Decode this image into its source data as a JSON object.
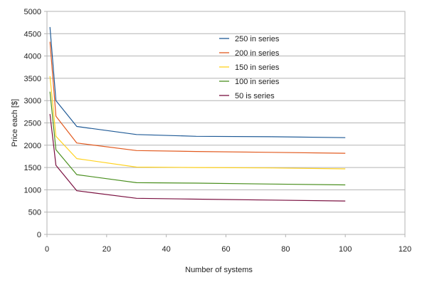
{
  "chart_data": {
    "type": "line",
    "title": "",
    "xlabel": "Number of systems",
    "ylabel": "Price each [$]",
    "xlim": [
      0,
      120
    ],
    "ylim": [
      0,
      5000
    ],
    "x_ticks": [
      0,
      20,
      40,
      60,
      80,
      100,
      120
    ],
    "y_ticks": [
      0,
      500,
      1000,
      1500,
      2000,
      2500,
      3000,
      3500,
      4000,
      4500,
      5000
    ],
    "grid": "horizontal",
    "legend_position": "top-right",
    "series": [
      {
        "name": "250 in series",
        "color": "#1f5a96",
        "x": [
          1,
          3,
          10,
          30,
          50,
          75,
          100
        ],
        "y": [
          4650,
          3000,
          2420,
          2240,
          2200,
          2190,
          2170
        ]
      },
      {
        "name": "200 in series",
        "color": "#e25a1f",
        "x": [
          1,
          3,
          10,
          30,
          50,
          75,
          100
        ],
        "y": [
          4320,
          2650,
          2050,
          1880,
          1860,
          1840,
          1820
        ]
      },
      {
        "name": "150 in series",
        "color": "#ffd21f",
        "x": [
          1,
          3,
          10,
          30,
          50,
          75,
          100
        ],
        "y": [
          3550,
          2200,
          1700,
          1510,
          1500,
          1490,
          1470
        ]
      },
      {
        "name": "100 in series",
        "color": "#4a8f1f",
        "x": [
          1,
          3,
          10,
          30,
          50,
          75,
          100
        ],
        "y": [
          3200,
          1900,
          1340,
          1160,
          1150,
          1130,
          1110
        ]
      },
      {
        "name": "50 is series",
        "color": "#7a1040",
        "x": [
          1,
          3,
          10,
          30,
          50,
          75,
          100
        ],
        "y": [
          2700,
          1550,
          980,
          810,
          790,
          770,
          750
        ]
      }
    ]
  }
}
